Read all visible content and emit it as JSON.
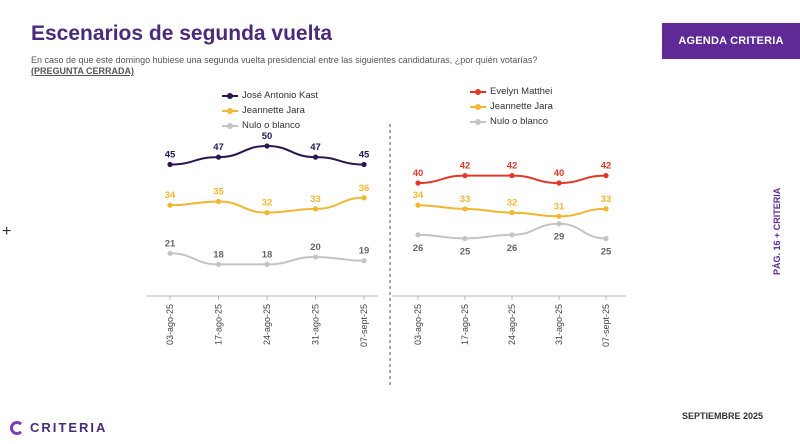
{
  "header": {
    "title": "Escenarios de segunda vuelta",
    "question": "En caso de que este domingo hubiese una segunda vuelta presidencial entre las siguientes candidaturas, ¿por quién votarías?",
    "note": "(PREGUNTA CERRADA)",
    "brand": "AGENDA CRITERIA"
  },
  "sidebar": {
    "page_label": "PÁG. 16  +  CRITERIA"
  },
  "footer": {
    "logo": "CRITERIA",
    "date": "SEPTIEMBRE 2025"
  },
  "chart_data": [
    {
      "type": "line",
      "title": "",
      "categories": [
        "03-ago-25",
        "17-ago-25",
        "24-ago-25",
        "31-ago-25",
        "07-sept-25"
      ],
      "series": [
        {
          "name": "José Antonio Kast",
          "values": [
            45,
            47,
            50,
            47,
            45
          ],
          "color": "#2a1650"
        },
        {
          "name": "Jeannette Jara",
          "values": [
            34,
            35,
            32,
            33,
            36
          ],
          "color": "#f2b731"
        },
        {
          "name": "Nulo o blanco",
          "values": [
            21,
            18,
            18,
            20,
            19
          ],
          "color": "#c4c4c4"
        }
      ],
      "legend": "top",
      "grid": false
    },
    {
      "type": "line",
      "title": "",
      "categories": [
        "03-ago-25",
        "17-ago-25",
        "24-ago-25",
        "31-ago-25",
        "07-sept-25"
      ],
      "series": [
        {
          "name": "Evelyn Matthei",
          "values": [
            40,
            42,
            42,
            40,
            42
          ],
          "color": "#e0382a"
        },
        {
          "name": "Jeannette Jara",
          "values": [
            34,
            33,
            32,
            31,
            33
          ],
          "color": "#f2b731"
        },
        {
          "name": "Nulo o blanco",
          "values": [
            26,
            25,
            26,
            29,
            25
          ],
          "color": "#c4c4c4"
        }
      ],
      "legend": "top",
      "grid": false
    }
  ]
}
